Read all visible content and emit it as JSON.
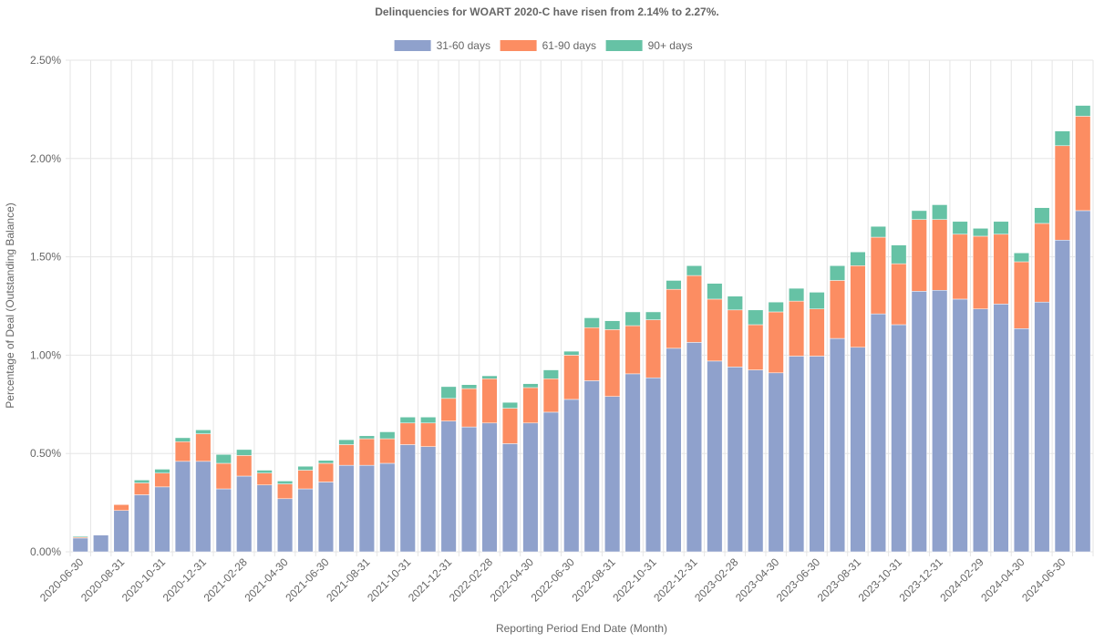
{
  "chart_data": {
    "type": "stacked-bar",
    "title": "Delinquencies for WOART 2020-C have risen from 2.14% to 2.27%.",
    "x_label": "Reporting Period End Date (Month)",
    "y_label": "Percentage of Deal (Outstanding Balance)",
    "categories": [
      "2020-06-30",
      null,
      "2020-08-31",
      null,
      "2020-10-31",
      null,
      "2020-12-31",
      null,
      "2021-02-28",
      null,
      "2021-04-30",
      null,
      "2021-06-30",
      null,
      "2021-08-31",
      null,
      "2021-10-31",
      null,
      "2021-12-31",
      null,
      "2022-02-28",
      null,
      "2022-04-30",
      null,
      "2022-06-30",
      null,
      "2022-08-31",
      null,
      "2022-10-31",
      null,
      "2022-12-31",
      null,
      "2023-02-28",
      null,
      "2023-04-30",
      null,
      "2023-06-30",
      null,
      "2023-08-31",
      null,
      "2023-10-31",
      null,
      "2023-12-31",
      null,
      "2024-02-29",
      null,
      "2024-04-30",
      null,
      "2024-06-30",
      null
    ],
    "series": [
      {
        "name": "31-60 days",
        "color": "#8fa1cc",
        "values": [
          0.07,
          0.085,
          0.21,
          0.29,
          0.33,
          0.46,
          0.46,
          0.32,
          0.385,
          0.34,
          0.27,
          0.32,
          0.355,
          0.44,
          0.44,
          0.45,
          0.545,
          0.535,
          0.665,
          0.635,
          0.655,
          0.55,
          0.655,
          0.71,
          0.775,
          0.87,
          0.79,
          0.905,
          0.885,
          1.035,
          1.065,
          0.97,
          0.94,
          0.925,
          0.91,
          0.995,
          0.995,
          1.085,
          1.04,
          1.21,
          1.155,
          1.325,
          1.33,
          1.285,
          1.235,
          1.26,
          1.135,
          1.27,
          1.585,
          1.735
        ]
      },
      {
        "name": "61-90 days",
        "color": "#fc8d62",
        "values": [
          0.005,
          0,
          0.03,
          0.06,
          0.07,
          0.1,
          0.14,
          0.13,
          0.105,
          0.06,
          0.075,
          0.095,
          0.095,
          0.105,
          0.135,
          0.125,
          0.11,
          0.12,
          0.115,
          0.195,
          0.225,
          0.18,
          0.18,
          0.17,
          0.225,
          0.27,
          0.34,
          0.245,
          0.295,
          0.3,
          0.34,
          0.315,
          0.29,
          0.23,
          0.31,
          0.28,
          0.24,
          0.295,
          0.415,
          0.39,
          0.31,
          0.365,
          0.36,
          0.33,
          0.37,
          0.355,
          0.34,
          0.4,
          0.48,
          0.48
        ]
      },
      {
        "name": "90+ days",
        "color": "#66c2a5",
        "values": [
          0.005,
          0,
          0,
          0.015,
          0.02,
          0.02,
          0.02,
          0.045,
          0.03,
          0.015,
          0.015,
          0.02,
          0.015,
          0.025,
          0.015,
          0.035,
          0.03,
          0.03,
          0.06,
          0.02,
          0.015,
          0.03,
          0.02,
          0.045,
          0.02,
          0.05,
          0.045,
          0.07,
          0.04,
          0.045,
          0.05,
          0.08,
          0.07,
          0.075,
          0.05,
          0.065,
          0.085,
          0.075,
          0.07,
          0.055,
          0.095,
          0.045,
          0.075,
          0.065,
          0.04,
          0.065,
          0.045,
          0.08,
          0.075,
          0.055
        ]
      }
    ],
    "ylim": [
      0,
      2.5
    ],
    "yticks": [
      {
        "value": 0,
        "label": "0.00%"
      },
      {
        "value": 0.5,
        "label": "0.50%"
      },
      {
        "value": 1,
        "label": "1.00%"
      },
      {
        "value": 1.5,
        "label": "1.50%"
      },
      {
        "value": 2,
        "label": "2.00%"
      },
      {
        "value": 2.5,
        "label": "2.50%"
      }
    ],
    "grid": true,
    "legend": "top"
  }
}
